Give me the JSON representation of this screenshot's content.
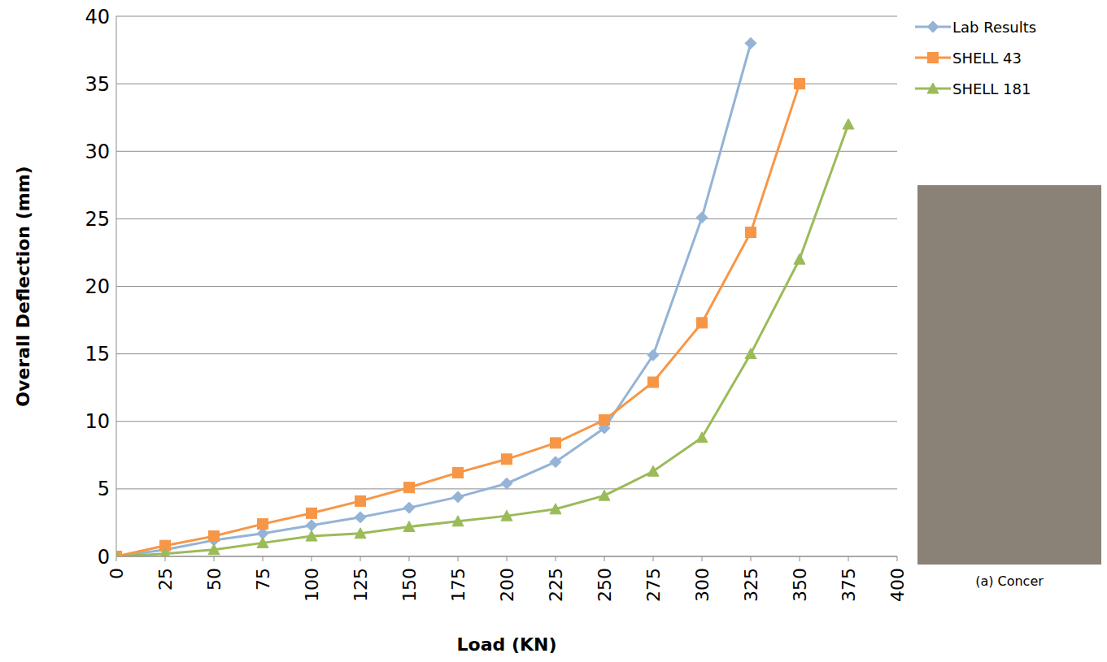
{
  "chart_data": {
    "type": "line",
    "x_label": "Load (KN)",
    "y_label": "Overall Deflection (mm)",
    "x": [
      0,
      25,
      50,
      75,
      100,
      125,
      150,
      175,
      200,
      225,
      250,
      275,
      300,
      325,
      350,
      375
    ],
    "series": [
      {
        "name": "Lab Results",
        "color": "#95b3d7",
        "marker": "diamond",
        "values": [
          0,
          0.5,
          1.2,
          1.7,
          2.3,
          2.9,
          3.6,
          4.4,
          5.4,
          7.0,
          9.5,
          14.9,
          25.1,
          38.0,
          null,
          null
        ]
      },
      {
        "name": "SHELL 43",
        "color": "#f79646",
        "marker": "square",
        "values": [
          0,
          0.8,
          1.5,
          2.4,
          3.2,
          4.1,
          5.1,
          6.2,
          7.2,
          8.4,
          10.1,
          12.9,
          17.3,
          24.0,
          35.0,
          null
        ]
      },
      {
        "name": "SHELL 181",
        "color": "#9bbb59",
        "marker": "triangle",
        "values": [
          0,
          0.2,
          0.5,
          1.0,
          1.5,
          1.7,
          2.2,
          2.6,
          3.0,
          3.5,
          4.5,
          6.3,
          8.8,
          15.0,
          22.0,
          32.0
        ]
      }
    ],
    "xlim": [
      0,
      400
    ],
    "xticks": [
      0,
      25,
      50,
      75,
      100,
      125,
      150,
      175,
      200,
      225,
      250,
      275,
      300,
      325,
      350,
      375,
      400
    ],
    "ylim": [
      0,
      40
    ],
    "yticks": [
      0,
      5,
      10,
      15,
      20,
      25,
      30,
      35,
      40
    ],
    "grid": true,
    "legend": "right",
    "annotations": [
      "(a) Concer"
    ]
  }
}
